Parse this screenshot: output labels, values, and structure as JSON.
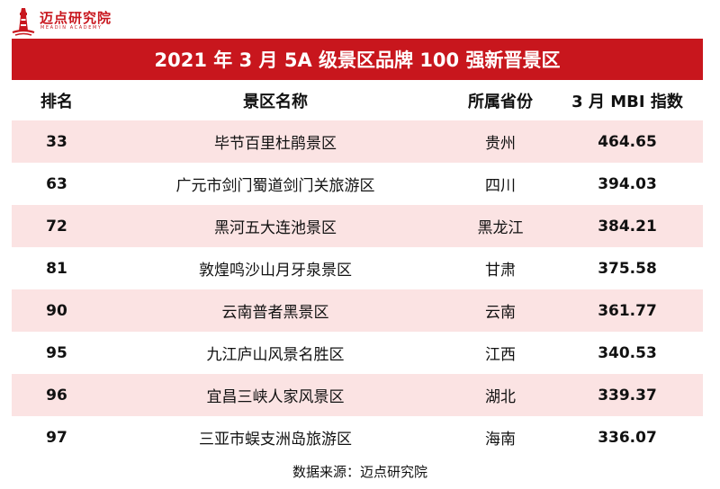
{
  "brand": {
    "name": "迈点研究院",
    "subtitle": "MEADIN ACADEMY",
    "color": "#c8161d"
  },
  "title": "2021 年 3 月 5A 级景区品牌 100 强新晋景区",
  "headers": {
    "rank": "排名",
    "name": "景区名称",
    "province": "所属省份",
    "mbi": "3 月 MBI 指数"
  },
  "rows": [
    {
      "rank": "33",
      "name": "毕节百里杜鹃景区",
      "province": "贵州",
      "mbi": "464.65"
    },
    {
      "rank": "63",
      "name": "广元市剑门蜀道剑门关旅游区",
      "province": "四川",
      "mbi": "394.03"
    },
    {
      "rank": "72",
      "name": "黑河五大连池景区",
      "province": "黑龙江",
      "mbi": "384.21"
    },
    {
      "rank": "81",
      "name": "敦煌鸣沙山月牙泉景区",
      "province": "甘肃",
      "mbi": "375.58"
    },
    {
      "rank": "90",
      "name": "云南普者黑景区",
      "province": "云南",
      "mbi": "361.77"
    },
    {
      "rank": "95",
      "name": "九江庐山风景名胜区",
      "province": "江西",
      "mbi": "340.53"
    },
    {
      "rank": "96",
      "name": "宜昌三峡人家风景区",
      "province": "湖北",
      "mbi": "339.37"
    },
    {
      "rank": "97",
      "name": "三亚市蜈支洲岛旅游区",
      "province": "海南",
      "mbi": "336.07"
    }
  ],
  "footer": "数据来源：迈点研究院"
}
